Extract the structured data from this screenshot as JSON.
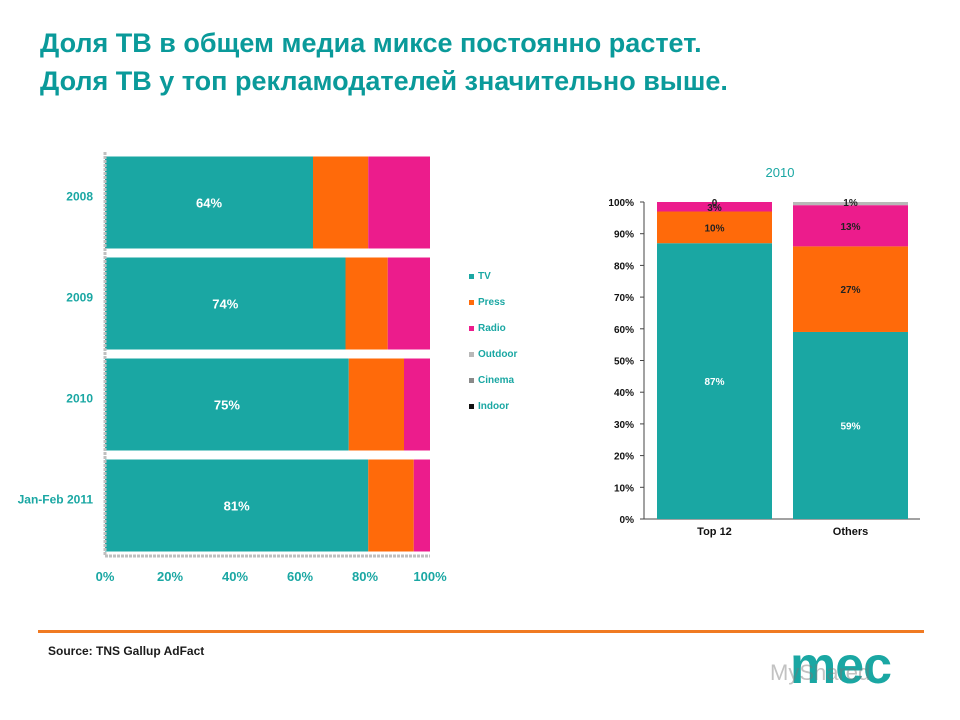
{
  "title": {
    "line1": "Доля ТВ в общем медиа миксе постоянно растет.",
    "line2": "Доля ТВ у топ рекламодателей значительно выше."
  },
  "colors": {
    "tv": "#1aa7a3",
    "press": "#ff6a0a",
    "radio": "#ec1c8c",
    "outdoor": "#b8b8b8",
    "cinema": "#8a8a8a",
    "indoor": "#111111",
    "year_label": "#1aa7a3",
    "accent": "#f07a22"
  },
  "legend": [
    "TV",
    "Press",
    "Radio",
    "Outdoor",
    "Cinema",
    "Indoor"
  ],
  "chart_data": [
    {
      "type": "bar",
      "orientation": "horizontal",
      "stacked": true,
      "categories": [
        "2008",
        "2009",
        "2010",
        "Jan-Feb 2011"
      ],
      "series": [
        {
          "name": "TV",
          "values": [
            64,
            74,
            75,
            81
          ],
          "labels": [
            "64%",
            "74%",
            "75%",
            "81%"
          ]
        },
        {
          "name": "Press",
          "values": [
            17,
            13,
            17,
            14
          ]
        },
        {
          "name": "Radio",
          "values": [
            19,
            13,
            8,
            5
          ]
        },
        {
          "name": "Outdoor",
          "values": [
            0,
            0,
            0,
            0
          ]
        },
        {
          "name": "Cinema",
          "values": [
            0,
            0,
            0,
            0
          ]
        },
        {
          "name": "Indoor",
          "values": [
            0,
            0,
            0,
            0
          ]
        }
      ],
      "xlim": [
        0,
        100
      ],
      "xticks": [
        "0%",
        "20%",
        "40%",
        "60%",
        "80%",
        "100%"
      ],
      "legend_position": "right"
    },
    {
      "type": "bar",
      "orientation": "vertical",
      "stacked": true,
      "title": "2010",
      "categories": [
        "Top 12",
        "Others"
      ],
      "series": [
        {
          "name": "TV",
          "values": [
            87,
            59
          ],
          "labels": [
            "87%",
            "59%"
          ]
        },
        {
          "name": "Press",
          "values": [
            10,
            27
          ],
          "labels": [
            "10%",
            "27%"
          ]
        },
        {
          "name": "Radio",
          "values": [
            3,
            13
          ],
          "labels": [
            "3%",
            "13%"
          ]
        },
        {
          "name": "Outdoor",
          "values": [
            0,
            1
          ],
          "labels": [
            "0",
            "1%"
          ]
        }
      ],
      "ylim": [
        0,
        100
      ],
      "yticks": [
        "0%",
        "10%",
        "20%",
        "30%",
        "40%",
        "50%",
        "60%",
        "70%",
        "80%",
        "90%",
        "100%"
      ]
    }
  ],
  "source": "Source: TNS Gallup AdFact",
  "logo": "mec",
  "watermark": "MyShared"
}
